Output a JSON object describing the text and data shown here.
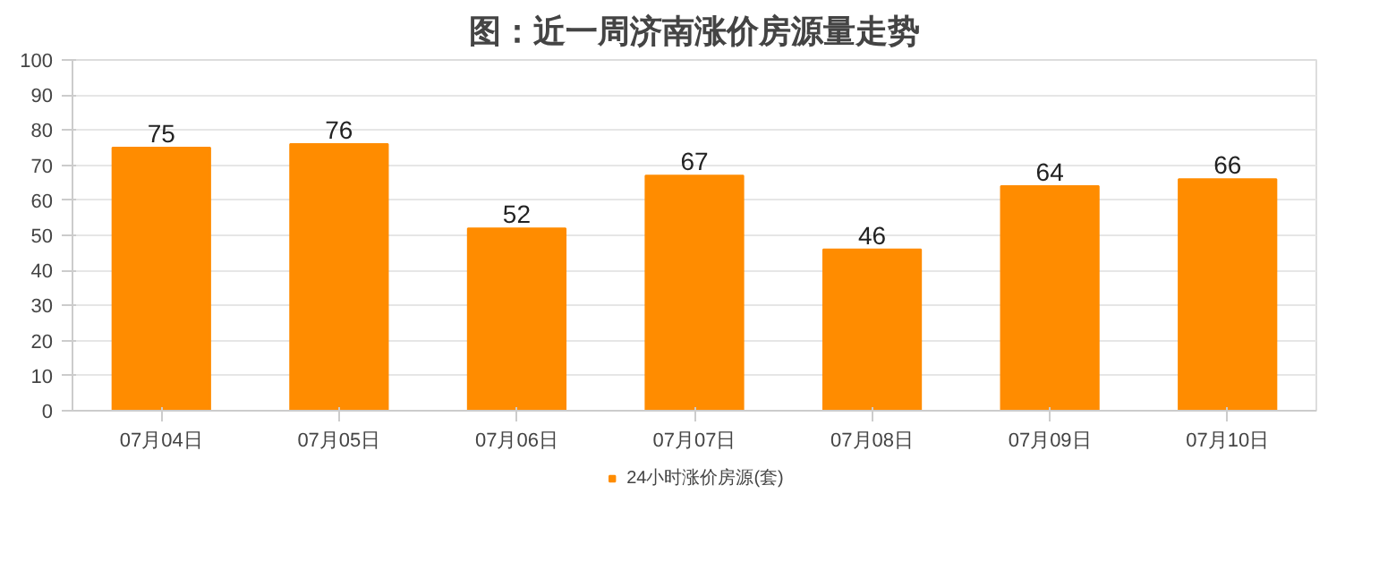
{
  "chart_data": {
    "type": "bar",
    "title": "图：近一周济南涨价房源量走势",
    "categories": [
      "07月04日",
      "07月05日",
      "07月06日",
      "07月07日",
      "07月08日",
      "07月09日",
      "07月10日"
    ],
    "series": [
      {
        "name": "24小时涨价房源(套)",
        "color": "#ff8c00",
        "values": [
          75,
          76,
          52,
          67,
          46,
          64,
          66
        ]
      }
    ],
    "ylim": [
      0,
      100
    ],
    "yticks": [
      0,
      10,
      20,
      30,
      40,
      50,
      60,
      70,
      80,
      90,
      100
    ],
    "grid": "y",
    "legend": "bottom",
    "data_labels": true
  }
}
